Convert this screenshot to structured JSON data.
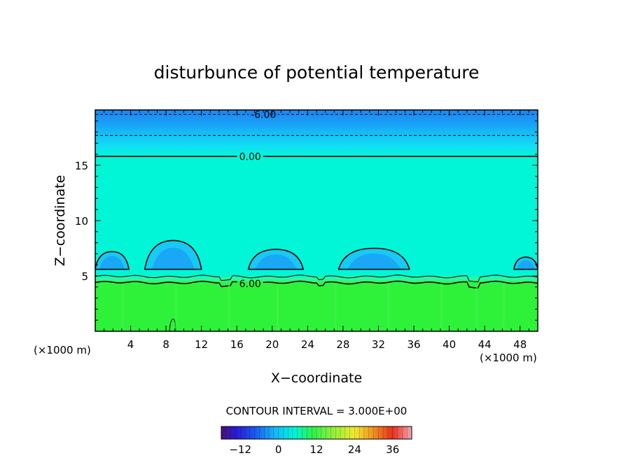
{
  "chart_data": {
    "type": "heatmap",
    "title": "disturbunce of potential temperature",
    "xlabel": "X−coordinate",
    "ylabel": "Z−coordinate",
    "x_unit_left": "(×1000 m)",
    "x_unit_right": "(×1000 m)",
    "xlim": [
      0,
      50
    ],
    "ylim": [
      0,
      20
    ],
    "x_ticks": [
      4,
      8,
      12,
      16,
      20,
      24,
      28,
      32,
      36,
      40,
      44,
      48
    ],
    "y_ticks": [
      5,
      10,
      15
    ],
    "contour_interval_text": "CONTOUR INTERVAL = 3.000E+00",
    "contour_labels": [
      {
        "text": "-6.00",
        "x": 19,
        "z": 19.6
      },
      {
        "text": "0.00",
        "x": 17.5,
        "z": 15.8
      },
      {
        "text": "6.00",
        "x": 17.5,
        "z": 4.3
      }
    ],
    "color_field": {
      "bands": [
        {
          "z": [
            0,
            4.4
          ],
          "value": 9,
          "color": "#2ef23a"
        },
        {
          "z": [
            4.4,
            4.9
          ],
          "value": 6,
          "color": "#33f79a"
        },
        {
          "z": [
            4.9,
            15.8
          ],
          "value": 2,
          "color": "#00f6d6"
        },
        {
          "z": [
            15.8,
            16.6
          ],
          "value": -1,
          "color": "#10e3f2"
        },
        {
          "z": [
            16.6,
            17.7
          ],
          "value": -3,
          "color": "#14c3f6"
        },
        {
          "z": [
            17.7,
            18.8
          ],
          "value": -5,
          "color": "#1a9ff7"
        },
        {
          "z": [
            18.8,
            20
          ],
          "value": -7,
          "color": "#1a86f2"
        }
      ],
      "cold_bubbles": [
        {
          "x": [
            0,
            3.8
          ],
          "z": [
            5.6,
            7.2
          ],
          "value": -1
        },
        {
          "x": [
            5.6,
            12
          ],
          "z": [
            5.6,
            8.2
          ],
          "value": -3
        },
        {
          "x": [
            17.3,
            23.5
          ],
          "z": [
            5.6,
            7.4
          ],
          "value": -3
        },
        {
          "x": [
            27.5,
            35.5
          ],
          "z": [
            5.6,
            7.5
          ],
          "value": -3
        },
        {
          "x": [
            47.3,
            50
          ],
          "z": [
            5.6,
            6.7
          ],
          "value": -1
        }
      ]
    },
    "colorbar": {
      "range": [
        -18,
        42
      ],
      "ticks": [
        "−12",
        "0",
        "12",
        "24",
        "36"
      ],
      "tick_values": [
        -12,
        0,
        12,
        24,
        36
      ]
    },
    "grid": false,
    "legend": "bottom-center"
  }
}
